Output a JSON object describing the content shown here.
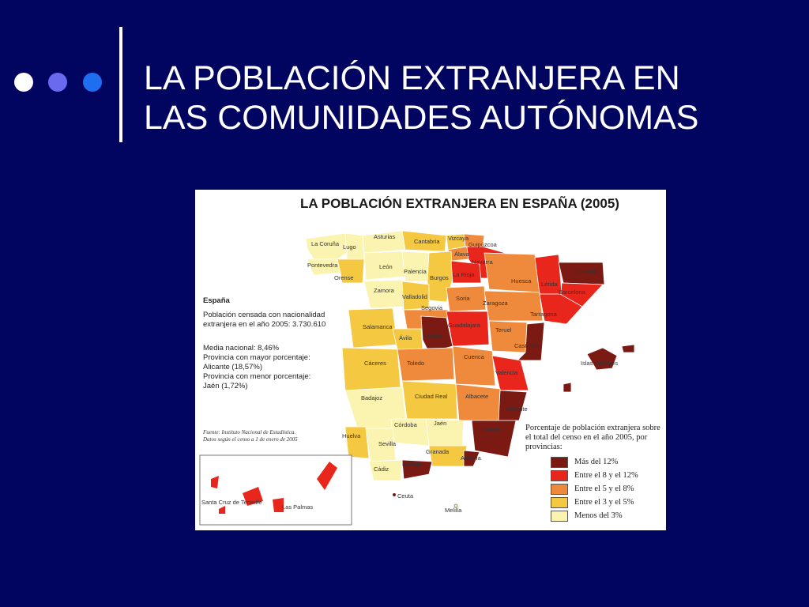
{
  "slide": {
    "title_line1": "LA POBLACIÓN EXTRANJERA EN",
    "title_line2": "LAS COMUNIDADES AUTÓNOMAS",
    "bullet_colors": [
      "#ffffff",
      "#6a6af0",
      "#1e6ef0"
    ]
  },
  "map": {
    "title": "LA POBLACIÓN EXTRANJERA EN ESPAÑA (2005)",
    "info_heading": "España",
    "info_census": "Población censada con nacionalidad extranjera en el año 2005: 3.730.610",
    "info_media": "Media nacional: 8,46%",
    "info_max_label": "Provincia con mayor porcentaje:",
    "info_max_value": "Alicante (18,57%)",
    "info_min_label": "Provincia con menor porcentaje:",
    "info_min_value": "Jaén (1,72%)",
    "source_line1": "Fuente: Instituto Nacional de Estadística.",
    "source_line2": "Datos según el censo a 1 de enero de 2005",
    "legend_title": "Porcentaje de población extranjera sobre el total del censo en el año 2005, por provincias:",
    "legend": [
      {
        "label": "Más del 12%",
        "color": "#7a1a12"
      },
      {
        "label": "Entre el 8 y el 12%",
        "color": "#e8261c"
      },
      {
        "label": "Entre el 5 y el 8%",
        "color": "#ef8a3c"
      },
      {
        "label": "Entre el 3 y el 5%",
        "color": "#f5c842"
      },
      {
        "label": "Menos del 3%",
        "color": "#fbf3b0"
      }
    ],
    "labels": {
      "la_coruna": "La Coruña",
      "lugo": "Lugo",
      "asturias": "Asturias",
      "cantabria": "Cantabria",
      "vizcaya": "Vizcaya",
      "guipuzcoa": "Guipúzcoa",
      "alava": "Álava",
      "navarra": "Navarra",
      "pontevedra": "Pontevedra",
      "orense": "Orense",
      "leon": "León",
      "palencia": "Palencia",
      "burgos": "Burgos",
      "la_rioja": "La Rioja",
      "huesca": "Huesca",
      "lleida": "Lérida",
      "girona": "Gerona",
      "barcelona": "Barcelona",
      "zamora": "Zamora",
      "valladolid": "Valladolid",
      "soria": "Soria",
      "zaragoza": "Zaragoza",
      "tarragona": "Tarragona",
      "segovia": "Segovia",
      "salamanca": "Salamanca",
      "guadalajara": "Guadalajara",
      "avila": "Ávila",
      "madrid": "Madrid",
      "teruel": "Teruel",
      "castellon": "Castellón",
      "caceres": "Cáceres",
      "toledo": "Toledo",
      "cuenca": "Cuenca",
      "valencia": "Valencia",
      "baleares": "Islas Baleares",
      "badajoz": "Badajoz",
      "ciudad_real": "Ciudad Real",
      "albacete": "Albacete",
      "alicante": "Alicante",
      "cordoba": "Córdoba",
      "jaen": "Jaén",
      "murcia": "Murcia",
      "huelva": "Huelva",
      "sevilla": "Sevilla",
      "granada": "Granada",
      "almeria": "Almería",
      "malaga": "Málaga",
      "cadiz": "Cádiz",
      "ceuta": "Ceuta",
      "melilla": "Melilla",
      "santa_cruz": "Santa Cruz de Tenerife",
      "las_palmas": "Las Palmas"
    }
  }
}
